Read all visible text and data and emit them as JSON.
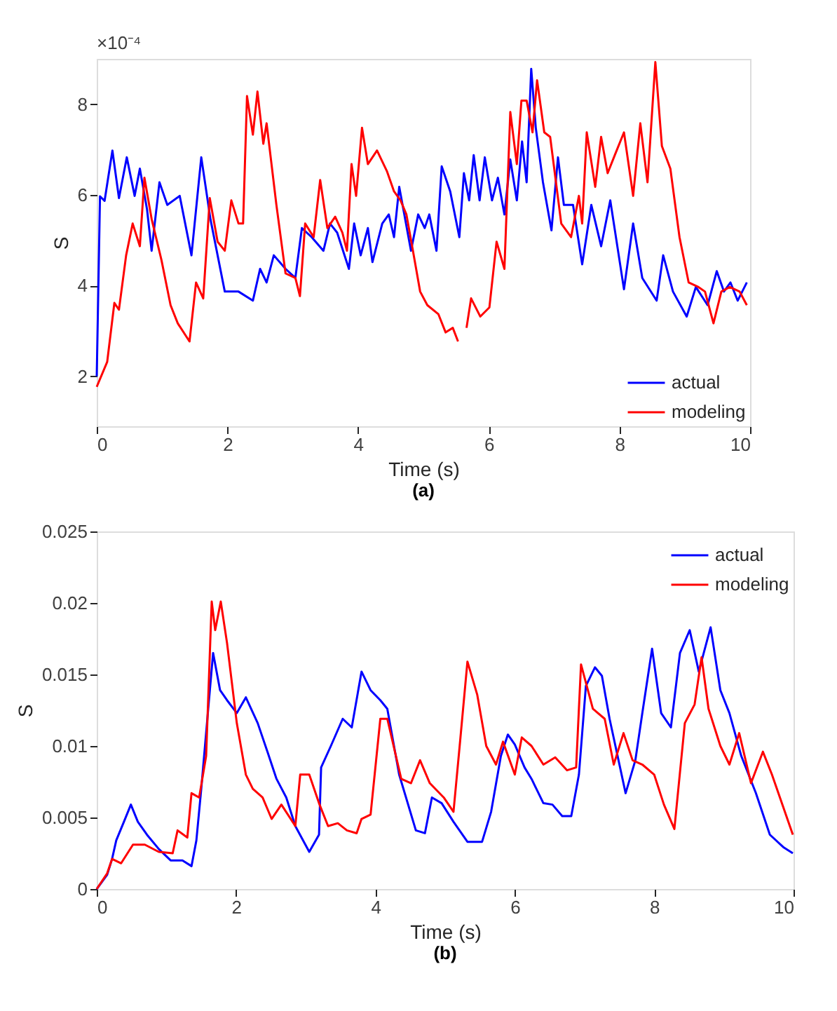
{
  "chart_data": [
    {
      "type": "line",
      "title": "(a)",
      "xlabel": "Time (s)",
      "ylabel": "S",
      "annotations": [
        "×10⁻⁴"
      ],
      "xlim": [
        0,
        10
      ],
      "xticks": [
        0,
        2,
        4,
        6,
        8,
        10
      ],
      "ylim": [
        0.9,
        9
      ],
      "yticks": [
        2,
        4,
        6,
        8
      ],
      "grid": false,
      "legend": "bottom right",
      "line_style": "solid",
      "marker": "none",
      "series": [
        {
          "name": "actual",
          "color": "#0000ff",
          "x": [
            0,
            0.05,
            0.12,
            0.24,
            0.34,
            0.46,
            0.58,
            0.66,
            0.77,
            0.84,
            0.96,
            1.08,
            1.27,
            1.45,
            1.6,
            1.74,
            1.96,
            2.17,
            2.39,
            2.5,
            2.6,
            2.71,
            2.89,
            3.04,
            3.14,
            3.29,
            3.47,
            3.57,
            3.68,
            3.86,
            3.94,
            4.04,
            4.15,
            4.22,
            4.37,
            4.47,
            4.55,
            4.63,
            4.81,
            4.92,
            5.02,
            5.09,
            5.2,
            5.28,
            5.41,
            5.55,
            5.62,
            5.7,
            5.77,
            5.86,
            5.94,
            6.05,
            6.14,
            6.24,
            6.33,
            6.43,
            6.51,
            6.58,
            6.65,
            6.72,
            6.83,
            6.96,
            7.06,
            7.15,
            7.29,
            7.43,
            7.57,
            7.72,
            7.86,
            8.07,
            8.21,
            8.35,
            8.57,
            8.67,
            8.82,
            9.03,
            9.17,
            9.35,
            9.49,
            9.6,
            9.7,
            9.81,
            9.95
          ],
          "values": [
            2.0,
            5.97,
            5.87,
            6.98,
            5.93,
            6.83,
            5.98,
            6.58,
            5.68,
            4.77,
            6.28,
            5.78,
            5.98,
            4.67,
            6.83,
            5.47,
            3.87,
            3.87,
            3.67,
            4.37,
            4.07,
            4.67,
            4.37,
            4.17,
            5.27,
            5.07,
            4.77,
            5.37,
            5.17,
            4.37,
            5.37,
            4.67,
            5.27,
            4.52,
            5.37,
            5.57,
            5.07,
            6.18,
            4.77,
            5.57,
            5.27,
            5.57,
            4.77,
            6.63,
            6.08,
            5.07,
            6.48,
            5.88,
            6.88,
            5.88,
            6.83,
            5.88,
            6.38,
            5.57,
            6.78,
            5.88,
            7.18,
            6.28,
            8.78,
            7.48,
            6.28,
            5.22,
            6.83,
            5.78,
            5.78,
            4.47,
            5.78,
            4.87,
            5.88,
            3.92,
            5.37,
            4.17,
            3.67,
            4.67,
            3.87,
            3.32,
            3.97,
            3.57,
            4.32,
            3.87,
            4.07,
            3.67,
            4.07
          ]
        },
        {
          "name": "modeling",
          "color": "#ff0000",
          "x": [
            0,
            0.16,
            0.27,
            0.34,
            0.45,
            0.55,
            0.66,
            0.73,
            0.84,
            0.99,
            1.13,
            1.24,
            1.42,
            1.52,
            1.63,
            1.73,
            1.85,
            1.96,
            2.06,
            2.17,
            2.24,
            2.3,
            2.39,
            2.46,
            2.55,
            2.6,
            2.75,
            2.89,
            3.04,
            3.11,
            3.19,
            3.32,
            3.42,
            3.53,
            3.65,
            3.76,
            3.83,
            3.9,
            3.97,
            4.06,
            4.15,
            4.29,
            4.44,
            4.55,
            4.65,
            4.74,
            4.84,
            4.95,
            5.06,
            5.23,
            5.34,
            5.45,
            5.53,
            5.6,
            5.66,
            5.73,
            5.87,
            6.01,
            6.12,
            6.24,
            6.33,
            6.43,
            6.5,
            6.58,
            6.67,
            6.74,
            6.85,
            6.94,
            7.11,
            7.26,
            7.38,
            7.43,
            7.5,
            7.63,
            7.72,
            7.82,
            7.93,
            8.07,
            8.21,
            8.32,
            8.43,
            8.55,
            8.65,
            8.78,
            8.92,
            9.06,
            9.21,
            9.31,
            9.44,
            9.56,
            9.69,
            9.84,
            9.95
          ],
          "values": [
            1.77,
            2.32,
            3.62,
            3.47,
            4.67,
            5.37,
            4.87,
            6.38,
            5.47,
            4.57,
            3.57,
            3.17,
            2.77,
            4.07,
            3.72,
            5.93,
            4.97,
            4.77,
            5.88,
            5.37,
            5.37,
            8.18,
            7.33,
            8.28,
            7.13,
            7.58,
            5.78,
            4.27,
            4.17,
            3.77,
            5.37,
            5.07,
            6.33,
            5.27,
            5.52,
            5.17,
            4.77,
            6.68,
            5.98,
            7.48,
            6.68,
            6.98,
            6.53,
            6.08,
            5.88,
            5.57,
            4.77,
            3.87,
            3.57,
            3.37,
            2.97,
            3.07,
            2.77,
            null,
            3.07,
            3.72,
            3.32,
            3.52,
            4.97,
            4.37,
            7.83,
            6.68,
            8.08,
            8.08,
            7.38,
            8.53,
            7.38,
            7.28,
            5.37,
            5.07,
            5.98,
            5.37,
            7.38,
            6.18,
            7.28,
            6.48,
            6.88,
            7.38,
            5.98,
            7.58,
            6.28,
            8.93,
            7.08,
            6.58,
            5.07,
            4.07,
            3.97,
            3.87,
            3.17,
            3.87,
            3.97,
            3.87,
            3.57
          ]
        }
      ]
    },
    {
      "type": "line",
      "title": "(b)",
      "xlabel": "Time (s)",
      "ylabel": "S",
      "xlim": [
        0,
        10
      ],
      "xticks": [
        0,
        2,
        4,
        6,
        8,
        10
      ],
      "ylim": [
        0,
        0.025
      ],
      "yticks": [
        0,
        0.005,
        0.01,
        0.015,
        0.02,
        0.025
      ],
      "grid": false,
      "legend": "top right",
      "line_style": "solid",
      "marker": "none",
      "series": [
        {
          "name": "actual",
          "color": "#0000ff",
          "x": [
            0,
            0.15,
            0.22,
            0.28,
            0.39,
            0.49,
            0.59,
            0.72,
            0.89,
            1.06,
            1.23,
            1.36,
            1.43,
            1.5,
            1.6,
            1.67,
            1.77,
            1.87,
            2.01,
            2.14,
            2.31,
            2.45,
            2.58,
            2.72,
            2.85,
            3.05,
            3.19,
            3.22,
            3.36,
            3.53,
            3.66,
            3.8,
            3.93,
            4.07,
            4.17,
            4.34,
            4.58,
            4.71,
            4.81,
            4.95,
            5.12,
            5.32,
            5.53,
            5.66,
            5.8,
            5.9,
            6.0,
            6.14,
            6.24,
            6.41,
            6.54,
            6.68,
            6.81,
            6.92,
            7.02,
            7.15,
            7.25,
            7.36,
            7.59,
            7.73,
            7.83,
            7.97,
            8.1,
            8.24,
            8.37,
            8.51,
            8.64,
            8.81,
            8.95,
            9.08,
            9.25,
            9.46,
            9.66,
            9.86,
            9.99
          ],
          "values": [
            0,
            0.001,
            0.0021,
            0.0034,
            0.0047,
            0.0059,
            0.0047,
            0.0038,
            0.0028,
            0.002,
            0.002,
            0.0016,
            0.0034,
            0.007,
            0.0126,
            0.0165,
            0.0139,
            0.0132,
            0.0123,
            0.0134,
            0.0116,
            0.0096,
            0.0077,
            0.0064,
            0.0044,
            0.0026,
            0.0038,
            0.0085,
            0.01,
            0.0119,
            0.0113,
            0.0152,
            0.0139,
            0.0132,
            0.0126,
            0.008,
            0.0041,
            0.0039,
            0.0064,
            0.006,
            0.0047,
            0.0033,
            0.0033,
            0.0054,
            0.0093,
            0.0108,
            0.0101,
            0.0085,
            0.0077,
            0.006,
            0.0059,
            0.0051,
            0.0051,
            0.008,
            0.0142,
            0.0155,
            0.0149,
            0.0119,
            0.0067,
            0.009,
            0.0123,
            0.0168,
            0.0123,
            0.0113,
            0.0165,
            0.0181,
            0.0152,
            0.0183,
            0.0139,
            0.0123,
            0.0093,
            0.0067,
            0.0038,
            0.0029,
            0.0025
          ]
        },
        {
          "name": "modeling",
          "color": "#ff0000",
          "x": [
            0,
            0.15,
            0.22,
            0.35,
            0.52,
            0.69,
            0.89,
            1.09,
            1.16,
            1.3,
            1.36,
            1.47,
            1.57,
            1.65,
            1.7,
            1.78,
            1.87,
            2.01,
            2.14,
            2.24,
            2.38,
            2.51,
            2.65,
            2.85,
            2.92,
            3.05,
            3.19,
            3.32,
            3.46,
            3.59,
            3.73,
            3.8,
            3.93,
            4.07,
            4.17,
            4.37,
            4.51,
            4.64,
            4.78,
            4.98,
            5.12,
            5.22,
            5.32,
            5.46,
            5.59,
            5.73,
            5.83,
            6.0,
            6.1,
            6.24,
            6.41,
            6.58,
            6.75,
            6.88,
            6.95,
            7.12,
            7.29,
            7.42,
            7.56,
            7.69,
            7.83,
            8.0,
            8.14,
            8.29,
            8.44,
            8.58,
            8.68,
            8.78,
            8.95,
            9.08,
            9.22,
            9.39,
            9.56,
            9.69,
            9.99
          ],
          "values": [
            0,
            0.0011,
            0.0021,
            0.0018,
            0.0031,
            0.0031,
            0.0026,
            0.0025,
            0.0041,
            0.0036,
            0.0067,
            0.0064,
            0.0093,
            0.0201,
            0.0181,
            0.0201,
            0.0172,
            0.0116,
            0.008,
            0.007,
            0.0064,
            0.0049,
            0.0059,
            0.0044,
            0.008,
            0.008,
            0.006,
            0.0044,
            0.0046,
            0.0041,
            0.0039,
            0.0049,
            0.0052,
            0.0119,
            0.0119,
            0.0077,
            0.0074,
            0.009,
            0.0074,
            0.0064,
            0.0054,
            0.0106,
            0.0159,
            0.0136,
            0.01,
            0.0087,
            0.0103,
            0.008,
            0.0106,
            0.01,
            0.0087,
            0.0092,
            0.0083,
            0.0085,
            0.0157,
            0.0126,
            0.0119,
            0.0087,
            0.0109,
            0.009,
            0.0087,
            0.008,
            0.0059,
            0.0042,
            0.0116,
            0.0129,
            0.0162,
            0.0126,
            0.01,
            0.0087,
            0.0109,
            0.0074,
            0.0096,
            0.008,
            0.0038
          ]
        }
      ]
    }
  ]
}
